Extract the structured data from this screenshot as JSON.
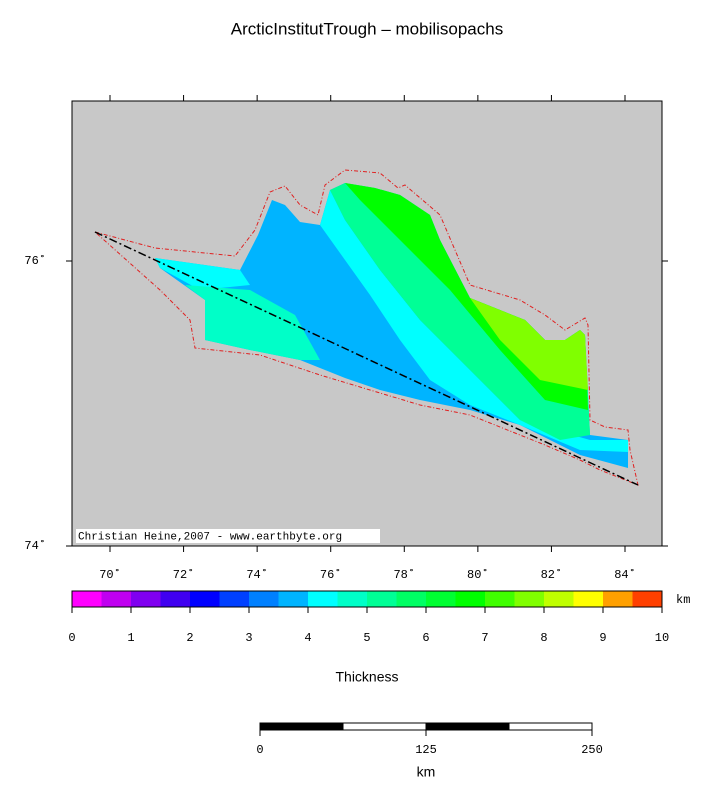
{
  "map": {
    "title": "ArcticInstitutTrough – mobilisopachs",
    "credit": "Christian Heine,2007 - www.earthbyte.org",
    "lon_ticks": [
      {
        "value": 70,
        "label": "70˚"
      },
      {
        "value": 72,
        "label": "72˚"
      },
      {
        "value": 74,
        "label": "74˚"
      },
      {
        "value": 76,
        "label": "76˚"
      },
      {
        "value": 78,
        "label": "78˚"
      },
      {
        "value": 80,
        "label": "80˚"
      },
      {
        "value": 82,
        "label": "82˚"
      },
      {
        "value": 84,
        "label": "84˚"
      }
    ],
    "lat_ticks": [
      {
        "value": 74,
        "label": "74˚"
      },
      {
        "value": 76,
        "label": "76˚"
      }
    ]
  },
  "colorbar": {
    "label": "Thickness",
    "unit": "km",
    "ticks": [
      0,
      1,
      2,
      3,
      4,
      5,
      6,
      7,
      8,
      9,
      10
    ],
    "colors": [
      "#ff00ff",
      "#c000f0",
      "#8000f0",
      "#4000f0",
      "#0000ff",
      "#0040ff",
      "#0080ff",
      "#00b4ff",
      "#00ffff",
      "#00ffc8",
      "#00ff96",
      "#00ff64",
      "#00ff32",
      "#00ff00",
      "#40ff00",
      "#80ff00",
      "#c0ff00",
      "#ffff00",
      "#ffa000",
      "#ff4000"
    ]
  },
  "scalebar": {
    "ticks": [
      0,
      125,
      250
    ],
    "unit": "km"
  }
}
